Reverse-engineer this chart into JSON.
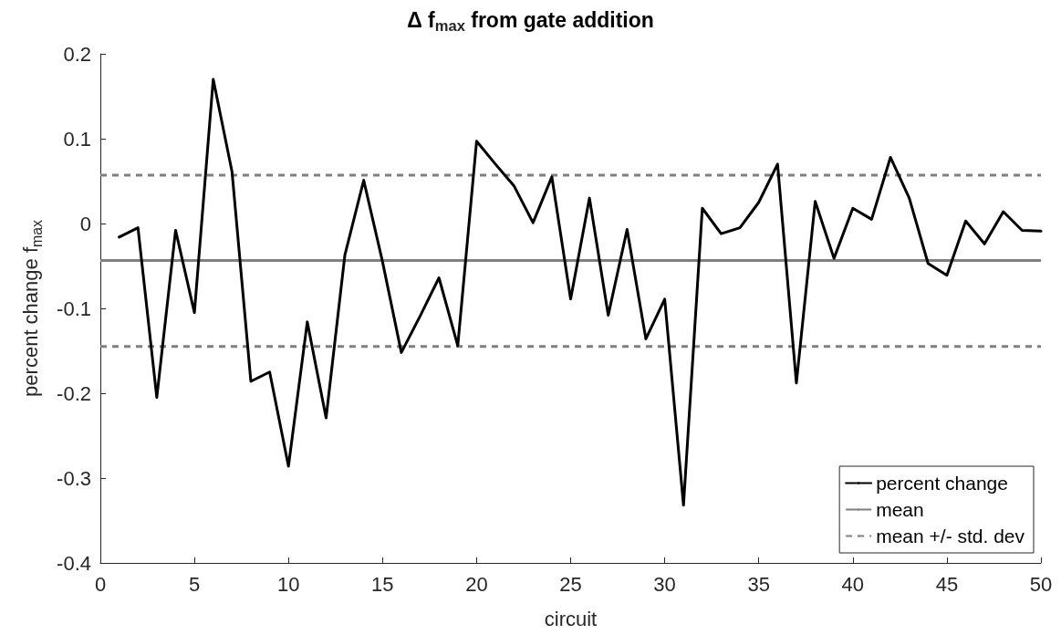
{
  "chart_data": {
    "type": "line",
    "title": "Δ f$_{max}$ from gate addition",
    "xlabel": "circuit",
    "ylabel": "percent change f$_{max}$",
    "x": [
      1,
      2,
      3,
      4,
      5,
      6,
      7,
      8,
      9,
      10,
      11,
      12,
      13,
      14,
      15,
      16,
      17,
      18,
      19,
      20,
      21,
      22,
      23,
      24,
      25,
      26,
      27,
      28,
      29,
      30,
      31,
      32,
      33,
      34,
      35,
      36,
      37,
      38,
      39,
      40,
      41,
      42,
      43,
      44,
      45,
      46,
      47,
      48,
      49,
      50
    ],
    "series": [
      {
        "name": "percent change",
        "color": "#000000",
        "values": [
          -0.016,
          -0.005,
          -0.205,
          -0.008,
          -0.105,
          0.17,
          0.061,
          -0.186,
          -0.175,
          -0.286,
          -0.116,
          -0.229,
          -0.037,
          0.051,
          -0.045,
          -0.152,
          -0.109,
          -0.064,
          -0.144,
          0.097,
          0.07,
          0.044,
          0.001,
          0.055,
          -0.089,
          0.03,
          -0.108,
          -0.007,
          -0.136,
          -0.089,
          -0.332,
          0.018,
          -0.012,
          -0.005,
          0.025,
          0.07,
          -0.188,
          0.026,
          -0.041,
          0.018,
          0.005,
          0.078,
          0.03,
          -0.047,
          -0.061,
          0.003,
          -0.024,
          0.014,
          -0.008,
          -0.009
        ]
      }
    ],
    "ref_lines": [
      {
        "axis": "y",
        "value": -0.0435,
        "label": "mean",
        "color": "#808080",
        "line_style": "solid"
      },
      {
        "axis": "y",
        "value": 0.057,
        "label": "mean +/- std. dev",
        "color": "#808080",
        "line_style": "dashed"
      },
      {
        "axis": "y",
        "value": -0.145,
        "color": "#808080",
        "line_style": "dashed"
      }
    ],
    "xlim": [
      0,
      50
    ],
    "xticks": [
      0,
      5,
      10,
      15,
      20,
      25,
      30,
      35,
      40,
      45,
      50
    ],
    "ylim": [
      -0.4,
      0.2
    ],
    "yticks": [
      -0.4,
      -0.3,
      -0.2,
      -0.1,
      0,
      0.1,
      0.2
    ],
    "grid": false,
    "legend": "bottom right",
    "marker": "none",
    "line_style": "solid"
  }
}
